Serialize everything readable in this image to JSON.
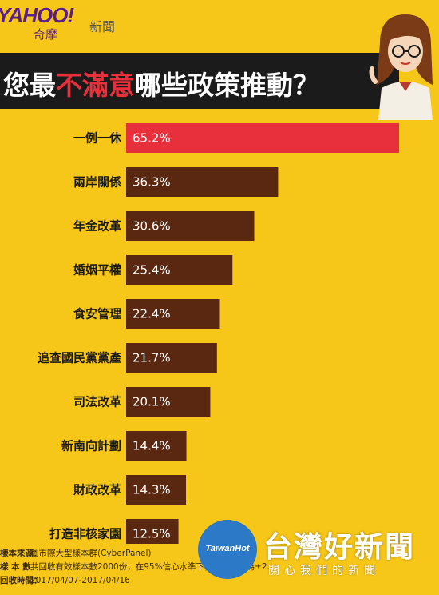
{
  "header": {
    "logo_main": "YAHOO!",
    "logo_sub": "奇摩",
    "section": "新聞"
  },
  "title": {
    "prefix": "您最",
    "highlight": "不滿意",
    "suffix": "哪些政策推動？"
  },
  "chart_data": {
    "type": "bar",
    "orientation": "horizontal",
    "categories": [
      "一例一休",
      "兩岸關係",
      "年金改革",
      "婚姻平權",
      "食安管理",
      "追查國民黨黨產",
      "司法改革",
      "新南向計劃",
      "財政改革",
      "打造非核家園"
    ],
    "values": [
      65.2,
      36.3,
      30.6,
      25.4,
      22.4,
      21.7,
      20.1,
      14.4,
      14.3,
      12.5
    ],
    "value_labels": [
      "65.2%",
      "36.3%",
      "30.6%",
      "25.4%",
      "22.4%",
      "21.7%",
      "20.1%",
      "14.4%",
      "14.3%",
      "12.5%"
    ],
    "unit": "%",
    "xlim": [
      0,
      65.2
    ],
    "highlight_index": 0,
    "colors": {
      "highlight": "#e8303c",
      "bar": "#5a2710",
      "background": "#f6c619"
    }
  },
  "footer": {
    "lines": [
      {
        "label": "樣本來源：",
        "text": "創市際大型樣本群(CyberPanel)"
      },
      {
        "label": "樣 本 數：",
        "text": "共回收有效樣本數2000份，在95%信心水準下，抽樣誤差為±2.19%"
      },
      {
        "label": "回收時間：",
        "text": "2017/04/07-2017/04/16"
      }
    ]
  },
  "watermark": {
    "circle_text": "TaiwanHot",
    "title": "台灣好新聞",
    "subtitle": "關心我們的新聞"
  }
}
